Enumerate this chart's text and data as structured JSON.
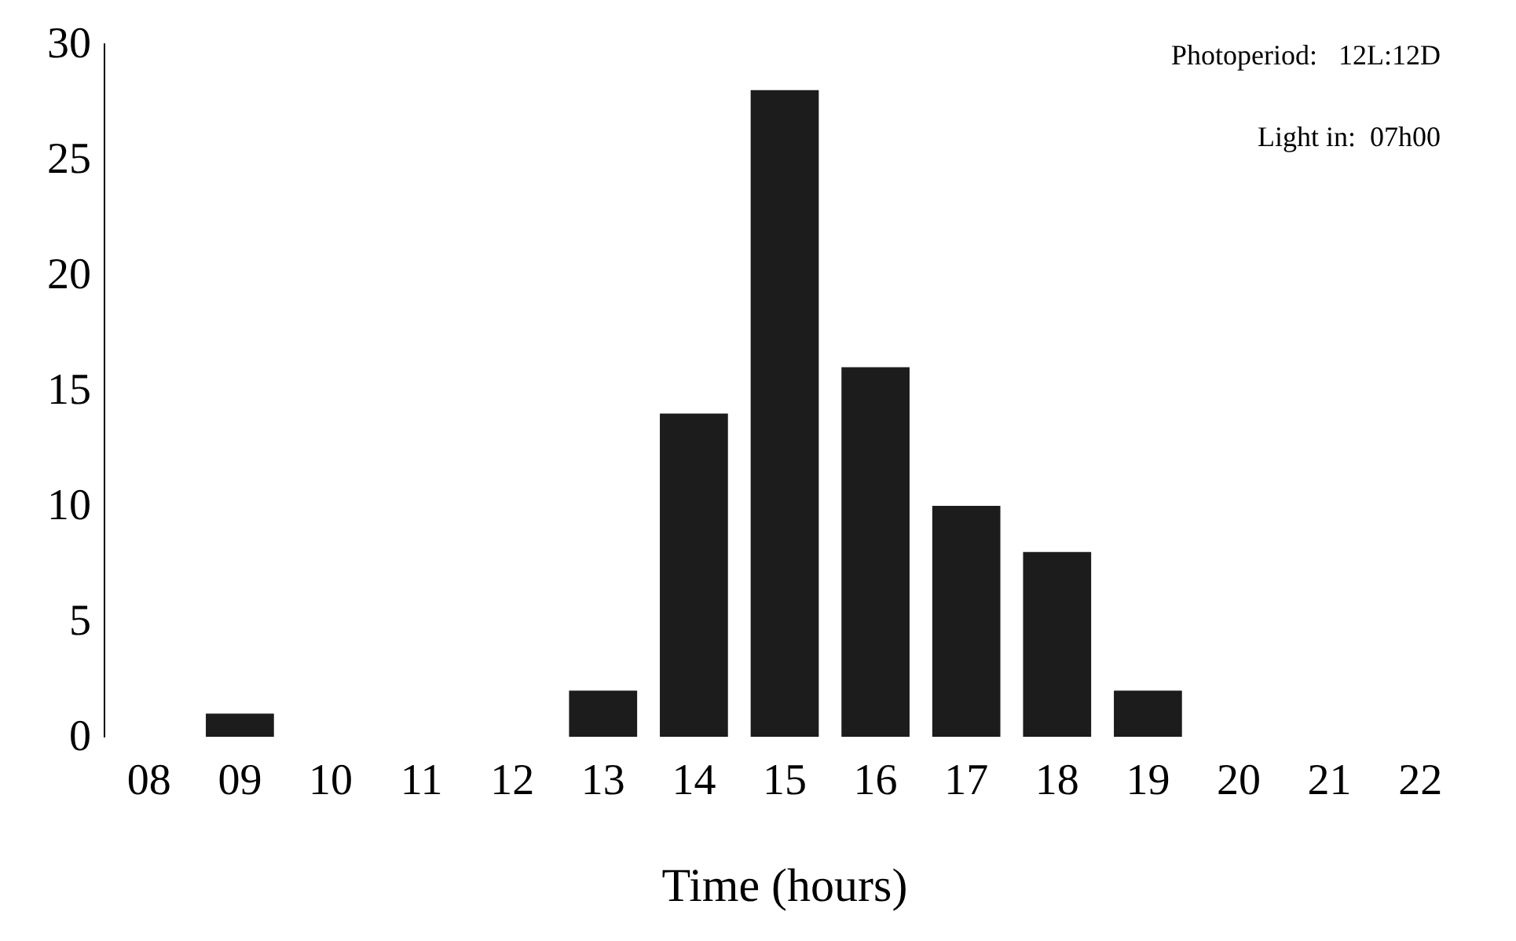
{
  "chart_data": {
    "type": "bar",
    "xlabel": "Time (hours)",
    "categories": [
      "08",
      "09",
      "10",
      "11",
      "12",
      "13",
      "14",
      "15",
      "16",
      "17",
      "18",
      "19",
      "20",
      "21",
      "22"
    ],
    "values": [
      0,
      1,
      0,
      0,
      0,
      2,
      14,
      28,
      16,
      10,
      8,
      2,
      0,
      0,
      0
    ],
    "color": "#1c1c1c",
    "ylim": [
      0,
      30
    ],
    "yticks": [
      0,
      5,
      10,
      15,
      20,
      25,
      30
    ],
    "grid": false,
    "annotations": [
      "Photoperiod:   12L:12D",
      "Light in:  07h00"
    ]
  }
}
